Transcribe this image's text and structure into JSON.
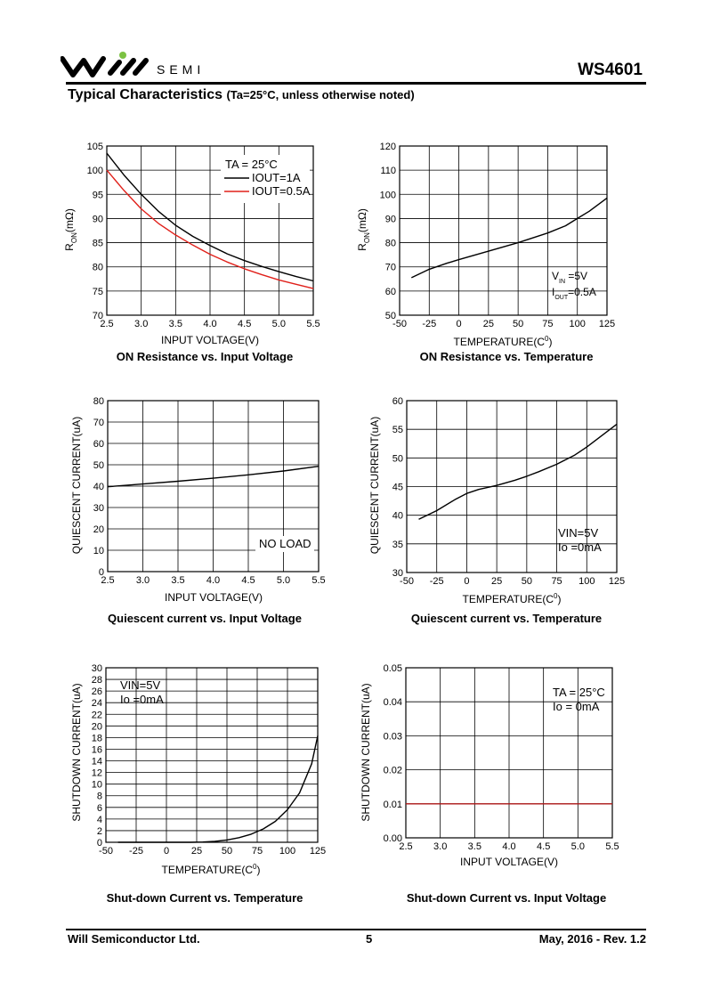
{
  "header": {
    "brand": "SEMI",
    "part_number": "WS4601",
    "section_title": "Typical Characteristics",
    "section_condition": "(Ta=25°C, unless otherwise noted)"
  },
  "footer": {
    "company": "Will Semiconductor Ltd.",
    "page": "5",
    "revision": "May, 2016 - Rev. 1.2"
  },
  "chart_data": [
    {
      "id": "c1",
      "type": "line",
      "title": "ON Resistance vs. Input Voltage",
      "xlabel": "INPUT VOLTAGE(V)",
      "ylabel": "R_ON(mΩ)",
      "xlim": [
        2.5,
        5.5
      ],
      "ylim": [
        70,
        105
      ],
      "xticks": [
        2.5,
        3.0,
        3.5,
        4.0,
        4.5,
        5.0,
        5.5
      ],
      "xtick_labels": [
        "2.5",
        "3.0",
        "3.5",
        "4.0",
        "4.5",
        "5.0",
        "5.5"
      ],
      "yticks": [
        70,
        75,
        80,
        85,
        90,
        95,
        100,
        105
      ],
      "ytick_labels": [
        "70",
        "75",
        "80",
        "85",
        "90",
        "95",
        "100",
        "105"
      ],
      "grid": true,
      "legend": {
        "position": "top-right",
        "header": "TA = 25°C"
      },
      "annotations": [],
      "series": [
        {
          "name": "IOUT=1A",
          "color": "#000000",
          "x": [
            2.5,
            2.75,
            3.0,
            3.25,
            3.5,
            3.75,
            4.0,
            4.25,
            4.5,
            4.75,
            5.0,
            5.25,
            5.5
          ],
          "y": [
            103.5,
            99.0,
            95.0,
            91.5,
            88.6,
            86.3,
            84.4,
            82.7,
            81.3,
            80.1,
            79.0,
            78.0,
            77.1
          ]
        },
        {
          "name": "IOUT=0.5A",
          "color": "#e0201a",
          "x": [
            2.5,
            2.75,
            3.0,
            3.25,
            3.5,
            3.75,
            4.0,
            4.25,
            4.5,
            4.75,
            5.0,
            5.25,
            5.5
          ],
          "y": [
            100.0,
            95.8,
            92.0,
            89.0,
            86.6,
            84.5,
            82.6,
            81.0,
            79.6,
            78.4,
            77.3,
            76.4,
            75.5
          ]
        }
      ]
    },
    {
      "id": "c2",
      "type": "line",
      "title": "ON Resistance vs. Temperature",
      "xlabel": "TEMPERATURE(C0)",
      "ylabel": "R_ON(mΩ)",
      "xlim": [
        -50,
        125
      ],
      "ylim": [
        50,
        120
      ],
      "xticks": [
        -50,
        -25,
        0,
        25,
        50,
        75,
        100,
        125
      ],
      "xtick_labels": [
        "-50",
        "-25",
        "0",
        "25",
        "50",
        "75",
        "100",
        "125"
      ],
      "yticks": [
        50,
        60,
        70,
        80,
        90,
        100,
        110,
        120
      ],
      "ytick_labels": [
        "50",
        "60",
        "70",
        "80",
        "90",
        "100",
        "110",
        "120"
      ],
      "grid": true,
      "annotations": [
        "VIN =5V",
        "IOUT=0.5A"
      ],
      "series": [
        {
          "name": "",
          "color": "#000000",
          "x": [
            -40,
            -25,
            -10,
            0,
            25,
            50,
            75,
            90,
            100,
            110,
            125
          ],
          "y": [
            65.5,
            69.0,
            71.5,
            73.0,
            76.5,
            80.0,
            84.0,
            87.0,
            90.0,
            93.0,
            98.5
          ]
        }
      ]
    },
    {
      "id": "c3",
      "type": "line",
      "title": "Quiescent current vs. Input Voltage",
      "xlabel": "INPUT VOLTAGE(V)",
      "ylabel": "QUIESCENT CURRENT(uA)",
      "xlim": [
        2.5,
        5.5
      ],
      "ylim": [
        0,
        80
      ],
      "xticks": [
        2.5,
        3.0,
        3.5,
        4.0,
        4.5,
        5.0,
        5.5
      ],
      "xtick_labels": [
        "2.5",
        "3.0",
        "3.5",
        "4.0",
        "4.5",
        "5.0",
        "5.5"
      ],
      "yticks": [
        0,
        10,
        20,
        30,
        40,
        50,
        60,
        70,
        80
      ],
      "ytick_labels": [
        "0",
        "10",
        "20",
        "30",
        "40",
        "50",
        "60",
        "70",
        "80"
      ],
      "grid": true,
      "annotations": [
        "NO LOAD"
      ],
      "series": [
        {
          "name": "",
          "color": "#000000",
          "x": [
            2.5,
            3.0,
            3.5,
            4.0,
            4.5,
            5.0,
            5.5
          ],
          "y": [
            39.7,
            41.0,
            42.3,
            43.7,
            45.3,
            47.1,
            49.3
          ]
        }
      ]
    },
    {
      "id": "c4",
      "type": "line",
      "title": "Quiescent current vs. Temperature",
      "xlabel": "TEMPERATURE(C0)",
      "ylabel": "QUIESCENT CURRENT(uA)",
      "xlim": [
        -50,
        125
      ],
      "ylim": [
        30,
        60
      ],
      "xticks": [
        -50,
        -25,
        0,
        25,
        50,
        75,
        100,
        125
      ],
      "xtick_labels": [
        "-50",
        "-25",
        "0",
        "25",
        "50",
        "75",
        "100",
        "125"
      ],
      "yticks": [
        30,
        35,
        40,
        45,
        50,
        55,
        60
      ],
      "ytick_labels": [
        "30",
        "35",
        "40",
        "45",
        "50",
        "55",
        "60"
      ],
      "grid": true,
      "annotations": [
        "VIN=5V",
        "Io =0mA"
      ],
      "series": [
        {
          "name": "",
          "color": "#000000",
          "x": [
            -40,
            -25,
            -10,
            0,
            10,
            25,
            40,
            50,
            60,
            75,
            90,
            100,
            110,
            125
          ],
          "y": [
            39.3,
            40.8,
            42.7,
            43.8,
            44.5,
            45.2,
            46.1,
            46.8,
            47.6,
            48.9,
            50.5,
            51.9,
            53.5,
            55.9
          ]
        }
      ]
    },
    {
      "id": "c5",
      "type": "line",
      "title": "Shut-down Current vs. Temperature",
      "xlabel": "TEMPERATURE(C0)",
      "ylabel": "SHUTDOWN CURRENT(uA)",
      "xlim": [
        -50,
        125
      ],
      "ylim": [
        0,
        30
      ],
      "xticks": [
        -50,
        -25,
        0,
        25,
        50,
        75,
        100,
        125
      ],
      "xtick_labels": [
        "-50",
        "-25",
        "0",
        "25",
        "50",
        "75",
        "100",
        "125"
      ],
      "yticks": [
        0,
        2,
        4,
        6,
        8,
        10,
        12,
        14,
        16,
        18,
        20,
        22,
        24,
        26,
        28,
        30
      ],
      "ytick_labels": [
        "0",
        "2",
        "4",
        "6",
        "8",
        "10",
        "12",
        "14",
        "16",
        "18",
        "20",
        "22",
        "24",
        "26",
        "28",
        "30"
      ],
      "grid": true,
      "annotations": [
        "VIN=5V",
        "Io =0mA"
      ],
      "series": [
        {
          "name": "",
          "color": "#000000",
          "x": [
            -40,
            -20,
            0,
            20,
            30,
            40,
            50,
            60,
            70,
            80,
            90,
            100,
            110,
            120,
            125
          ],
          "y": [
            0,
            0,
            0,
            0,
            0.05,
            0.15,
            0.4,
            0.8,
            1.4,
            2.3,
            3.6,
            5.6,
            8.5,
            13.5,
            18.3
          ]
        }
      ]
    },
    {
      "id": "c6",
      "type": "line",
      "title": "Shut-down Current vs. Input Voltage",
      "xlabel": "INPUT VOLTAGE(V)",
      "ylabel": "SHUTDOWN CURRENT(uA)",
      "xlim": [
        2.5,
        5.5
      ],
      "ylim": [
        0,
        0.05
      ],
      "xticks": [
        2.5,
        3.0,
        3.5,
        4.0,
        4.5,
        5.0,
        5.5
      ],
      "xtick_labels": [
        "2.5",
        "3.0",
        "3.5",
        "4.0",
        "4.5",
        "5.0",
        "5.5"
      ],
      "yticks": [
        0,
        0.01,
        0.02,
        0.03,
        0.04,
        0.05
      ],
      "ytick_labels": [
        "0.00",
        "0.01",
        "0.02",
        "0.03",
        "0.04",
        "0.05"
      ],
      "grid": true,
      "annotations": [
        "TA = 25°C",
        "Io = 0mA"
      ],
      "series": [
        {
          "name": "",
          "color": "#b0191a",
          "x": [
            2.5,
            5.5
          ],
          "y": [
            0.01,
            0.01
          ]
        }
      ]
    }
  ]
}
